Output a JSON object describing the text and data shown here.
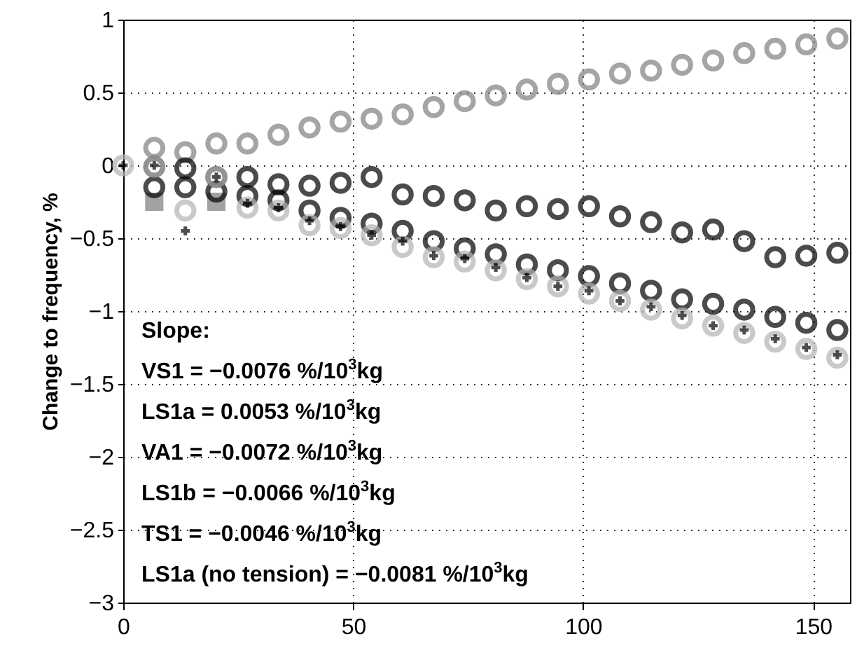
{
  "chart_data": {
    "type": "scatter",
    "ylabel": "Change to frequency, %",
    "x": [
      0,
      6.75,
      13.5,
      20.25,
      27,
      33.75,
      40.5,
      47.25,
      54,
      60.75,
      67.5,
      74.25,
      81,
      87.75,
      94.5,
      101.25,
      108,
      114.75,
      121.5,
      128.25,
      135,
      141.75,
      148.5,
      155.25
    ],
    "series": [
      {
        "color": "#7a7a7a",
        "marker": "square",
        "values": [
          null,
          -0.25,
          null,
          -0.25,
          null,
          null,
          null,
          null,
          null,
          null,
          null,
          null,
          null,
          null,
          null,
          null,
          null,
          null,
          null,
          null,
          null,
          null,
          null,
          null
        ]
      },
      {
        "color": "#808080",
        "marker": "circle",
        "values": [
          null,
          0.12,
          0.09,
          0.15,
          0.15,
          0.21,
          0.26,
          0.3,
          0.32,
          0.35,
          0.4,
          0.44,
          0.48,
          0.52,
          0.56,
          0.59,
          0.63,
          0.65,
          0.69,
          0.72,
          0.77,
          0.8,
          0.83,
          0.87
        ]
      },
      {
        "color": "#000000",
        "marker": "circle",
        "values": [
          null,
          -0.01,
          -0.02,
          -0.08,
          -0.08,
          -0.13,
          -0.14,
          -0.12,
          -0.08,
          -0.2,
          -0.21,
          -0.24,
          -0.31,
          -0.28,
          -0.3,
          -0.28,
          -0.35,
          -0.39,
          -0.46,
          -0.44,
          -0.52,
          -0.63,
          -0.62,
          -0.6
        ]
      },
      {
        "color": "#000000",
        "marker": "circle",
        "values": [
          null,
          -0.15,
          -0.15,
          -0.18,
          -0.21,
          -0.24,
          -0.31,
          -0.36,
          -0.4,
          -0.45,
          -0.52,
          -0.57,
          -0.61,
          -0.68,
          -0.72,
          -0.76,
          -0.81,
          -0.86,
          -0.92,
          -0.95,
          -0.99,
          -1.04,
          -1.08,
          -1.13
        ]
      },
      {
        "color": "#b3b3b3",
        "marker": "circle",
        "values": [
          0,
          -0.01,
          -0.31,
          -0.08,
          -0.29,
          -0.31,
          -0.41,
          -0.43,
          -0.48,
          -0.56,
          -0.63,
          -0.66,
          -0.72,
          -0.78,
          -0.83,
          -0.88,
          -0.93,
          -0.99,
          -1.05,
          -1.1,
          -1.15,
          -1.21,
          -1.26,
          -1.32
        ]
      },
      {
        "color": "#000000",
        "marker": "cross",
        "values": [
          0,
          0,
          -0.45,
          -0.08,
          -0.26,
          -0.29,
          -0.38,
          -0.42,
          -0.48,
          -0.52,
          -0.62,
          -0.64,
          -0.7,
          -0.77,
          -0.83,
          -0.86,
          -0.93,
          -0.97,
          -1.03,
          -1.1,
          -1.13,
          -1.19,
          -1.25,
          -1.3
        ]
      }
    ],
    "xlim": [
      0,
      158
    ],
    "xticks": [
      0,
      50,
      100,
      150
    ],
    "ylim": [
      -3,
      1
    ],
    "yticks": [
      -3,
      -2.5,
      -2,
      -1.5,
      -1,
      -0.5,
      0,
      0.5,
      1
    ],
    "grid": true,
    "annotations": [
      "Slope:",
      "VS1 = −0.0076 %/10$^{3}$kg",
      "LS1a = 0.0053 %/10$^{3}$kg",
      "VA1 = −0.0072 %/10$^{3}$kg",
      "LS1b = −0.0066 %/10$^{3}$kg",
      "TS1 = −0.0046 %/10$^{3}$kg",
      "LS1a (no tension) = −0.0081 %/10$^{3}$kg"
    ]
  }
}
